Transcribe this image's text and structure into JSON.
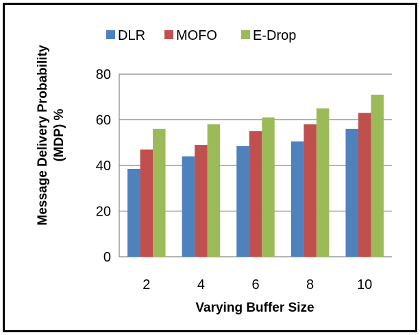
{
  "chart_data": {
    "type": "bar",
    "categories": [
      "2",
      "4",
      "6",
      "8",
      "10"
    ],
    "series": [
      {
        "name": "DLR",
        "values": [
          38.5,
          44,
          48.5,
          50.5,
          56
        ],
        "color": "#4f81bd"
      },
      {
        "name": "MOFO",
        "values": [
          47,
          49,
          55,
          58,
          63
        ],
        "color": "#c0504d"
      },
      {
        "name": "E-Drop",
        "values": [
          56,
          58,
          61,
          65,
          71
        ],
        "color": "#9bbb59"
      }
    ],
    "title": "",
    "xlabel": "Varying Buffer Size",
    "ylabel_lines": [
      "Message Delivery Probability",
      "(MDP) %"
    ],
    "ylim": [
      0,
      80
    ],
    "yticks": [
      0,
      20,
      40,
      60,
      80
    ],
    "grid": true,
    "legend": "top"
  }
}
